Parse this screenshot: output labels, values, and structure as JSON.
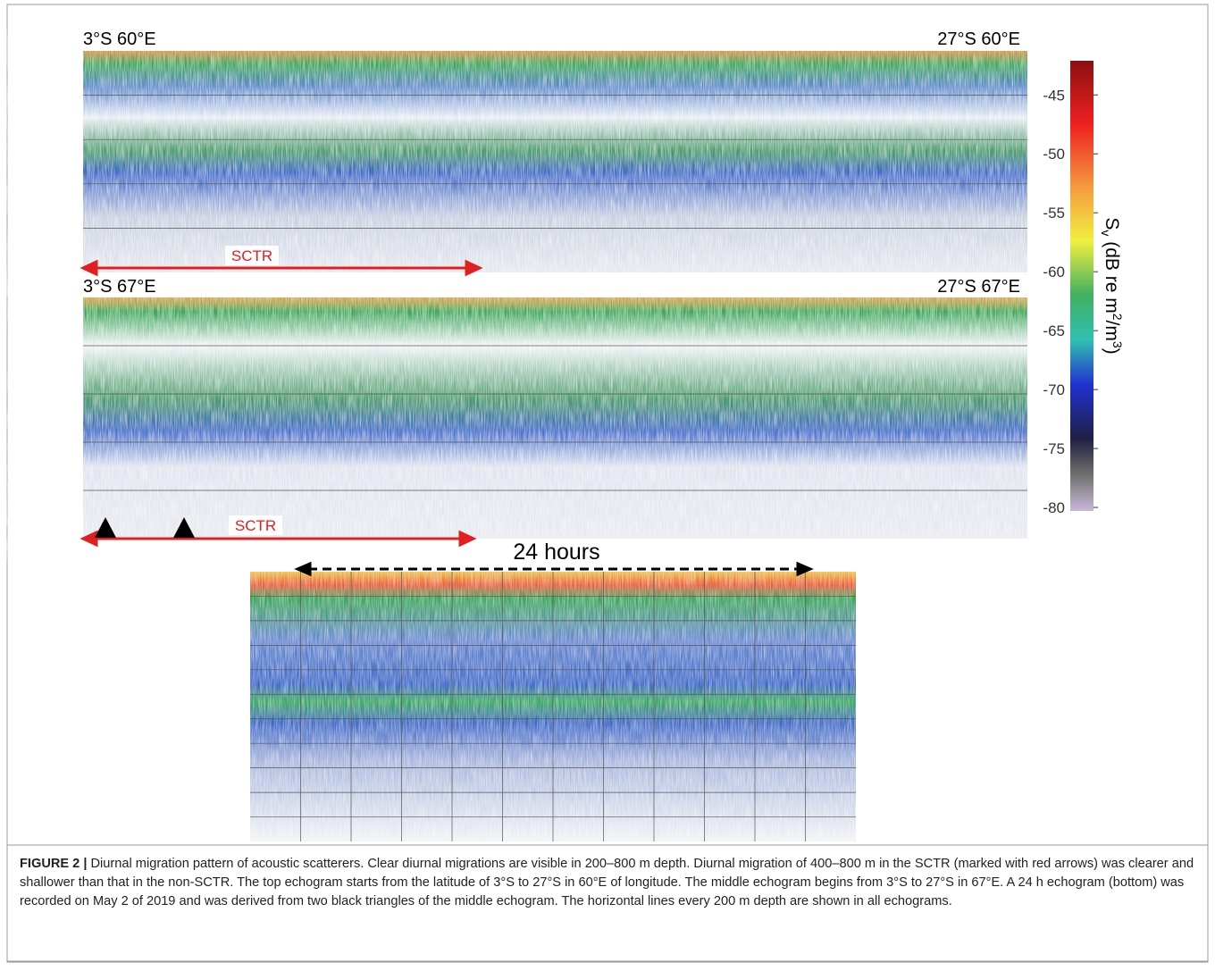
{
  "figure": {
    "panels": [
      {
        "start_label": "3°S 60°E",
        "end_label": "27°S 60°E",
        "region_label": "SCTR"
      },
      {
        "start_label": "3°S 67°E",
        "end_label": "27°S 67°E",
        "region_label": "SCTR"
      }
    ],
    "bottom_panel": {
      "duration_label": "24 hours"
    },
    "colorbar": {
      "label_parts": [
        "S",
        "v",
        " (dB re m",
        "2",
        "/m",
        "3",
        ")"
      ],
      "lim": [
        -42.1,
        -80.3
      ],
      "ticks": [
        -45,
        -50,
        -55,
        -60,
        -65,
        -70,
        -75,
        -80
      ]
    }
  },
  "caption": {
    "label": "FIGURE 2 |",
    "text": "Diurnal migration pattern of acoustic scatterers. Clear diurnal migrations are visible in 200–800 m depth. Diurnal migration of 400–800 m in the SCTR (marked with red arrows) was clearer and shallower than that in the non-SCTR. The top echogram starts from the latitude of 3°S to 27°S in 60°E of longitude. The middle echogram begins from 3°S to 27°S in 67°E. A 24 h echogram (bottom) was recorded on May 2 of 2019 and was derived from two black triangles of the middle echogram. The horizontal lines every 200 m depth are shown in all echograms."
  }
}
